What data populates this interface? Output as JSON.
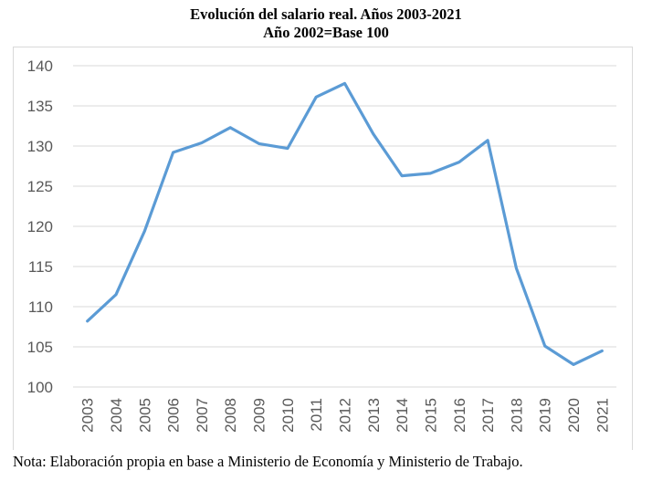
{
  "chart_data": {
    "type": "line",
    "title": "Evolución del salario real. Años 2003-2021",
    "subtitle": "Año 2002=Base 100",
    "xlabel": "",
    "ylabel": "",
    "ylim": [
      100,
      140
    ],
    "yticks": [
      "100",
      "105",
      "110",
      "115",
      "120",
      "125",
      "130",
      "135",
      "140"
    ],
    "ytick_values": [
      100,
      105,
      110,
      115,
      120,
      125,
      130,
      135,
      140
    ],
    "grid": true,
    "legend": "none",
    "categories": [
      "2003",
      "2004",
      "2005",
      "2006",
      "2007",
      "2008",
      "2009",
      "2010",
      "2011",
      "2012",
      "2013",
      "2014",
      "2015",
      "2016",
      "2017",
      "2018",
      "2019",
      "2020",
      "2021"
    ],
    "series": [
      {
        "name": "Salario real",
        "color": "#5b9bd5",
        "values": [
          108.2,
          111.5,
          119.4,
          129.2,
          130.4,
          132.3,
          130.3,
          129.7,
          136.1,
          137.8,
          131.5,
          126.3,
          126.6,
          128.0,
          130.7,
          114.8,
          105.1,
          102.8,
          104.5
        ]
      }
    ]
  },
  "note": "Nota: Elaboración propia en base a Ministerio de Economía y Ministerio de Trabajo.",
  "colors": {
    "line": "#5b9bd5",
    "grid": "#d9d9d9",
    "axis_text": "#595959"
  }
}
